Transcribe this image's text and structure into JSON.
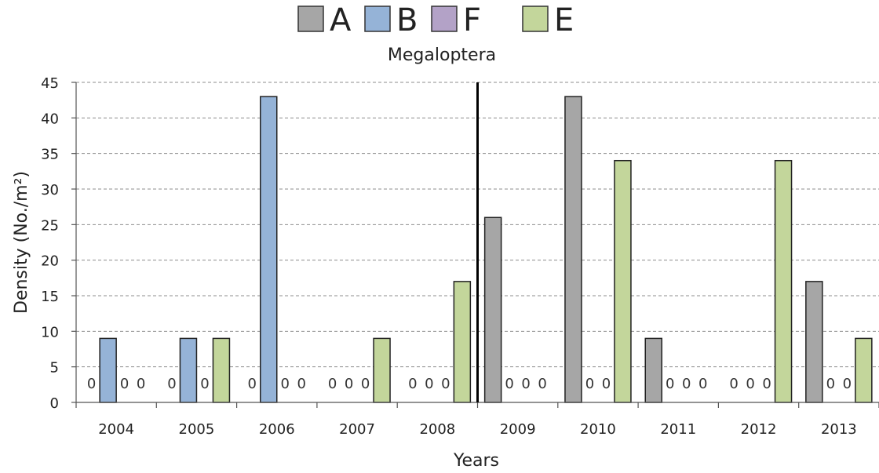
{
  "chart_data": {
    "type": "bar",
    "title": "Megaloptera",
    "xlabel": "Years",
    "ylabel": "Density (No./m²)",
    "ylim": [
      0,
      45
    ],
    "yticks": [
      0,
      5,
      10,
      15,
      20,
      25,
      30,
      35,
      40,
      45
    ],
    "grid": true,
    "legend_position": "top",
    "categories": [
      "2004",
      "2005",
      "2006",
      "2007",
      "2008",
      "2009",
      "2010",
      "2011",
      "2012",
      "2013"
    ],
    "series": [
      {
        "name": "A",
        "color": "#a6a6a6",
        "values": [
          0,
          0,
          0,
          0,
          0,
          26,
          43,
          9,
          0,
          17
        ]
      },
      {
        "name": "B",
        "color": "#95b3d7",
        "values": [
          9,
          9,
          43,
          0,
          0,
          0,
          0,
          0,
          0,
          0
        ]
      },
      {
        "name": "F",
        "color": "#b3a2c7",
        "values": [
          0,
          0,
          0,
          0,
          0,
          0,
          0,
          0,
          0,
          0
        ]
      },
      {
        "name": "E",
        "color": "#c3d69b",
        "values": [
          0,
          9,
          0,
          9,
          17,
          0,
          34,
          0,
          34,
          9
        ]
      }
    ],
    "divider_after_category": "2008"
  }
}
